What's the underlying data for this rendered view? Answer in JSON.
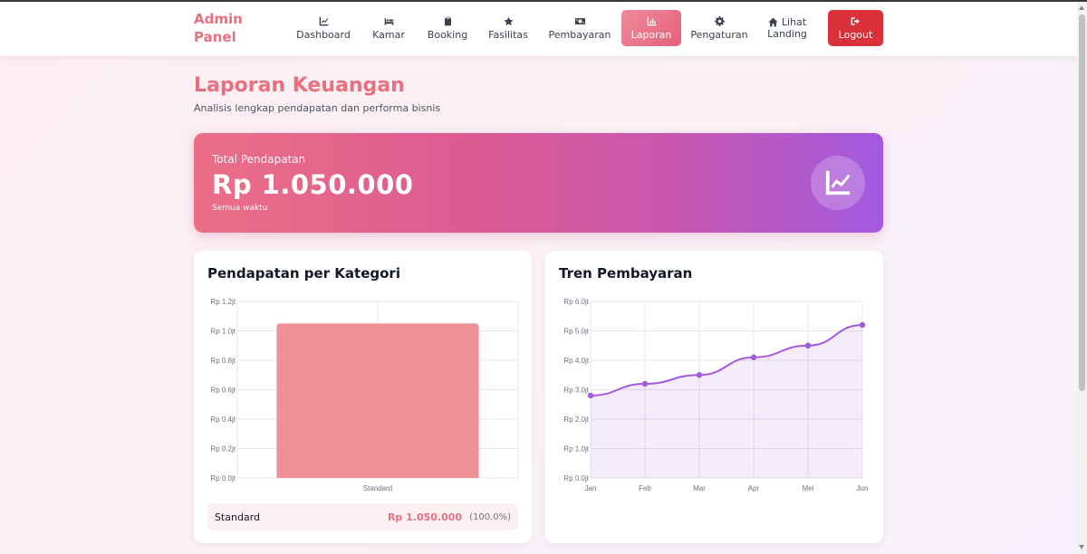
{
  "brand": {
    "line1": "Admin",
    "line2": "Panel"
  },
  "nav": {
    "dashboard": "Dashboard",
    "kamar": "Kamar",
    "booking": "Booking",
    "fasilitas": "Fasilitas",
    "pembayaran": "Pembayaran",
    "laporan": "Laporan",
    "pengaturan": "Pengaturan",
    "landing_line1": "Lihat",
    "landing_line2": "Landing",
    "logout": "Logout"
  },
  "page": {
    "title": "Laporan Keuangan",
    "subtitle": "Analisis lengkap pendapatan dan performa bisnis"
  },
  "hero": {
    "label": "Total Pendapatan",
    "value": "Rp 1.050.000",
    "note": "Semua waktu",
    "icon": "chart-line-icon"
  },
  "category_card": {
    "title": "Pendapatan per Kategori",
    "row": {
      "name": "Standard",
      "value": "Rp 1.050.000",
      "pct": "(100.0%)"
    }
  },
  "trend_card": {
    "title": "Tren Pembayaran"
  },
  "colors": {
    "accent": "#e8707f",
    "bar": "#ef8f98",
    "line": "#a35ae0",
    "logout": "#d9303a"
  },
  "chart_data": [
    {
      "type": "bar",
      "title": "Pendapatan per Kategori",
      "categories": [
        "Standard"
      ],
      "values": [
        1050000
      ],
      "ylim": [
        0,
        1200000
      ],
      "yticks": [
        "Rp 0.0jt",
        "Rp 0.2jt",
        "Rp 0.4jt",
        "Rp 0.6jt",
        "Rp 0.8jt",
        "Rp 1.0jt",
        "Rp 1.2jt"
      ],
      "grid": true
    },
    {
      "type": "area",
      "title": "Tren Pembayaran",
      "categories": [
        "Jan",
        "Feb",
        "Mar",
        "Apr",
        "Mei",
        "Jun"
      ],
      "values": [
        2800000,
        3200000,
        3500000,
        4100000,
        4500000,
        5200000
      ],
      "ylim": [
        0,
        6000000
      ],
      "yticks": [
        "Rp 0.0jt",
        "Rp 1.0jt",
        "Rp 2.0jt",
        "Rp 3.0jt",
        "Rp 4.0jt",
        "Rp 5.0jt",
        "Rp 6.0jt"
      ],
      "grid": true
    }
  ]
}
